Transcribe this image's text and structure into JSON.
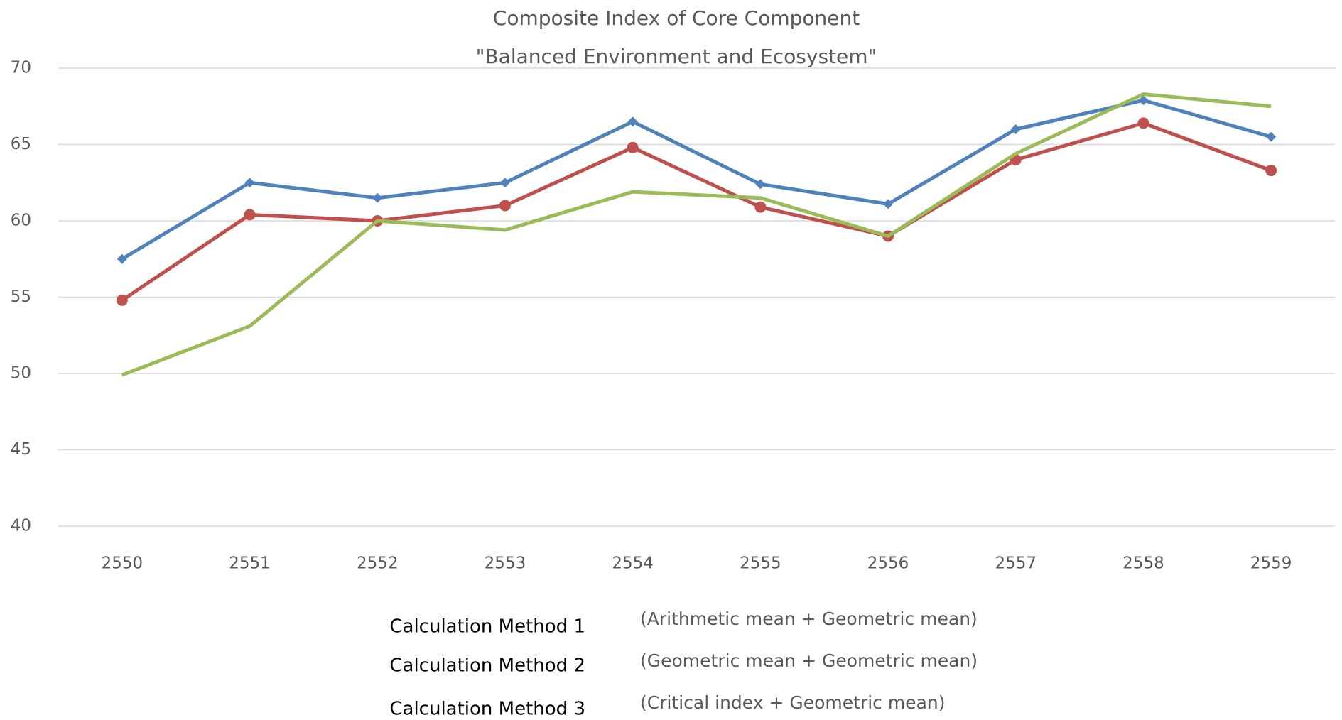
{
  "chart_data": {
    "type": "line",
    "title": "Composite Index of Core Component",
    "subtitle": "\"Balanced Environment and Ecosystem\"",
    "categories": [
      "2550",
      "2551",
      "2552",
      "2553",
      "2554",
      "2555",
      "2556",
      "2557",
      "2558",
      "2559"
    ],
    "series": [
      {
        "name": "Calculation Method 1",
        "description": "(Arithmetic mean + Geometric mean)",
        "color": "#4f81bd",
        "marker": "diamond",
        "values": [
          57.5,
          62.5,
          61.5,
          62.5,
          66.5,
          62.4,
          61.1,
          66.0,
          67.9,
          65.5
        ]
      },
      {
        "name": "Calculation Method 2",
        "description": "(Geometric mean + Geometric mean)",
        "color": "#c0504d",
        "marker": "circle",
        "values": [
          54.8,
          60.4,
          60.0,
          61.0,
          64.8,
          60.9,
          59.0,
          64.0,
          66.4,
          63.3
        ]
      },
      {
        "name": "Calculation Method 3",
        "description": "(Critical index + Geometric mean)",
        "color": "#9bbb59",
        "marker": "none",
        "values": [
          49.9,
          53.1,
          60.0,
          59.4,
          61.9,
          61.5,
          59.0,
          64.4,
          68.3,
          67.5
        ]
      }
    ],
    "ylim": [
      40,
      70
    ],
    "yticks": [
      40,
      45,
      50,
      55,
      60,
      65,
      70
    ],
    "grid": true
  }
}
